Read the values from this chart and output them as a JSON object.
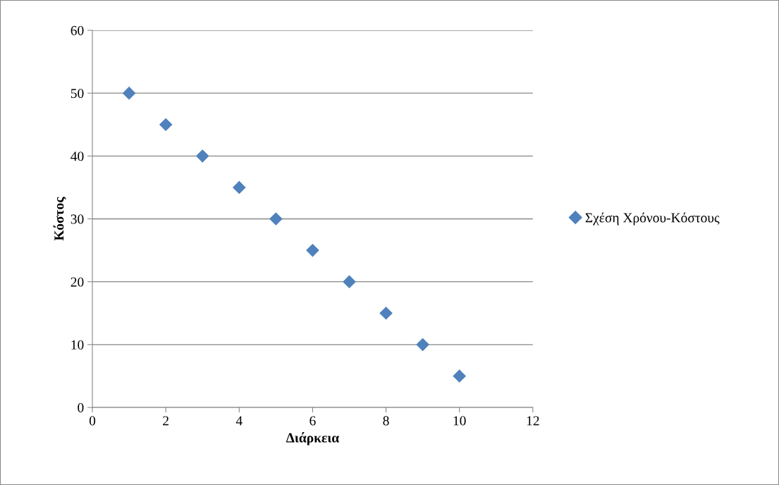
{
  "chart_data": {
    "type": "scatter",
    "xlabel": "Διάρκεια",
    "ylabel": "Κόστος",
    "x": [
      1,
      2,
      3,
      4,
      5,
      6,
      7,
      8,
      9,
      10
    ],
    "series": [
      {
        "name": "Σχέση Χρόνου-Κόστους",
        "color": "#4f81bd",
        "values": [
          50,
          45,
          40,
          35,
          30,
          25,
          20,
          15,
          10,
          5
        ]
      }
    ],
    "xlim": [
      0,
      12
    ],
    "xticks": [
      0,
      2,
      4,
      6,
      8,
      10,
      12
    ],
    "ylim": [
      0,
      60
    ],
    "yticks": [
      0,
      10,
      20,
      30,
      40,
      50,
      60
    ],
    "grid": "y",
    "legend": "right",
    "marker": "diamond"
  }
}
